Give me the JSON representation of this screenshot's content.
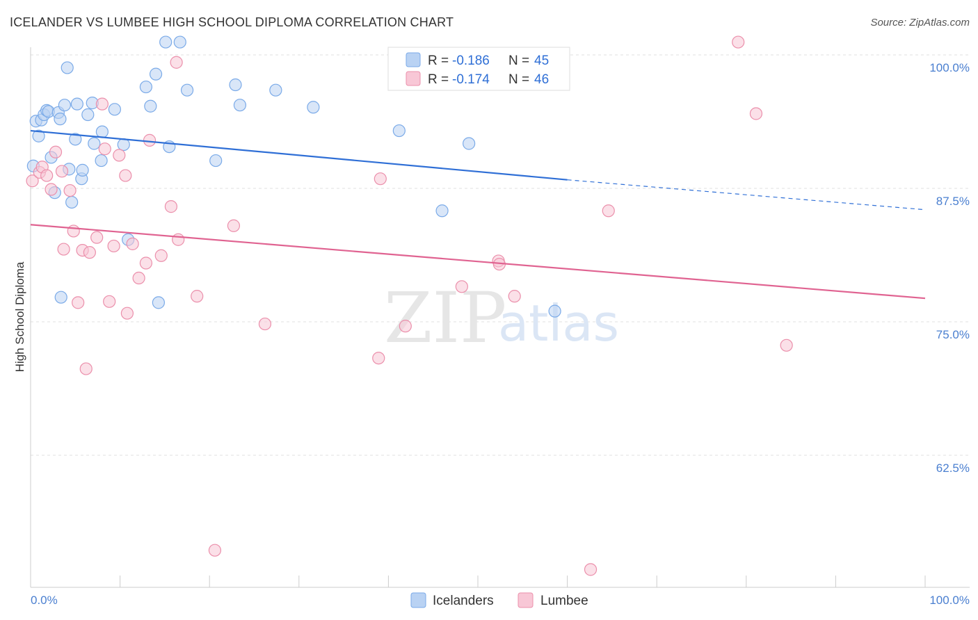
{
  "header": {
    "title": "ICELANDER VS LUMBEE HIGH SCHOOL DIPLOMA CORRELATION CHART",
    "source": "Source: ZipAtlas.com"
  },
  "watermark": {
    "zip": "ZIP",
    "atlas": "atlas"
  },
  "legend": {
    "icelanders": {
      "r_label": "R =",
      "r_value": "-0.186",
      "n_label": "N =",
      "n_value": "45"
    },
    "lumbee": {
      "r_label": "R =",
      "r_value": "-0.174",
      "n_label": "N =",
      "n_value": "46"
    }
  },
  "chart_data": {
    "type": "scatter",
    "title": "ICELANDER VS LUMBEE HIGH SCHOOL DIPLOMA CORRELATION CHART",
    "xlabel": "",
    "ylabel": "High School Diploma",
    "xlim": [
      0,
      100
    ],
    "ylim": [
      50,
      101.5
    ],
    "x_tick_labels": [
      "0.0%",
      "100.0%"
    ],
    "y_ticks": [
      {
        "value": 100,
        "label": "100.0%"
      },
      {
        "value": 87.5,
        "label": "87.5%"
      },
      {
        "value": 75,
        "label": "75.0%"
      },
      {
        "value": 62.5,
        "label": "62.5%"
      }
    ],
    "series": [
      {
        "name": "Icelanders",
        "color": "#7aaae8",
        "fill": "#b9d2f3",
        "points": [
          [
            0.3,
            89.6
          ],
          [
            0.6,
            93.8
          ],
          [
            0.9,
            92.4
          ],
          [
            1.2,
            93.9
          ],
          [
            1.5,
            94.4
          ],
          [
            1.8,
            94.8
          ],
          [
            2.0,
            94.7
          ],
          [
            2.3,
            90.4
          ],
          [
            2.7,
            87.1
          ],
          [
            3.1,
            94.6
          ],
          [
            3.3,
            94.0
          ],
          [
            3.4,
            77.3
          ],
          [
            3.8,
            95.3
          ],
          [
            4.1,
            98.8
          ],
          [
            4.3,
            89.3
          ],
          [
            4.6,
            86.2
          ],
          [
            5.0,
            92.1
          ],
          [
            5.2,
            95.4
          ],
          [
            5.7,
            88.4
          ],
          [
            5.8,
            89.2
          ],
          [
            6.4,
            94.4
          ],
          [
            6.9,
            95.5
          ],
          [
            7.1,
            91.7
          ],
          [
            7.9,
            90.1
          ],
          [
            8.0,
            92.8
          ],
          [
            9.4,
            94.9
          ],
          [
            10.4,
            91.6
          ],
          [
            10.9,
            82.7
          ],
          [
            12.9,
            97.0
          ],
          [
            13.4,
            95.2
          ],
          [
            14.0,
            98.2
          ],
          [
            14.3,
            76.8
          ],
          [
            15.1,
            101.2
          ],
          [
            15.5,
            91.4
          ],
          [
            16.7,
            101.2
          ],
          [
            17.5,
            96.7
          ],
          [
            20.7,
            90.1
          ],
          [
            22.9,
            97.2
          ],
          [
            23.4,
            95.3
          ],
          [
            27.4,
            96.7
          ],
          [
            31.6,
            95.1
          ],
          [
            41.2,
            92.9
          ],
          [
            46.0,
            85.4
          ],
          [
            49.0,
            91.7
          ],
          [
            58.6,
            76.0
          ]
        ],
        "trend": {
          "x_start": 0,
          "y_start": 92.9,
          "x_end": 60,
          "y_end": 88.3,
          "dash_to_x": 100,
          "dash_to_y": 85.5
        }
      },
      {
        "name": "Lumbee",
        "color": "#eb8fab",
        "fill": "#f8c7d6",
        "points": [
          [
            0.2,
            88.2
          ],
          [
            1.0,
            89.0
          ],
          [
            1.3,
            89.5
          ],
          [
            1.8,
            88.7
          ],
          [
            2.3,
            87.4
          ],
          [
            2.8,
            90.9
          ],
          [
            3.5,
            89.1
          ],
          [
            3.7,
            81.8
          ],
          [
            4.4,
            87.3
          ],
          [
            4.8,
            83.5
          ],
          [
            5.3,
            76.8
          ],
          [
            5.8,
            81.7
          ],
          [
            6.2,
            70.6
          ],
          [
            6.6,
            81.5
          ],
          [
            7.4,
            82.9
          ],
          [
            8.0,
            95.4
          ],
          [
            8.3,
            91.2
          ],
          [
            8.8,
            76.9
          ],
          [
            9.3,
            82.1
          ],
          [
            9.9,
            90.6
          ],
          [
            10.6,
            88.7
          ],
          [
            10.8,
            75.8
          ],
          [
            11.4,
            82.3
          ],
          [
            12.1,
            79.1
          ],
          [
            12.9,
            80.5
          ],
          [
            13.3,
            92.0
          ],
          [
            14.6,
            81.2
          ],
          [
            15.7,
            85.8
          ],
          [
            16.3,
            99.3
          ],
          [
            16.5,
            82.7
          ],
          [
            18.6,
            77.4
          ],
          [
            20.6,
            53.6
          ],
          [
            22.7,
            84.0
          ],
          [
            26.2,
            74.8
          ],
          [
            39.1,
            88.4
          ],
          [
            38.9,
            71.6
          ],
          [
            41.9,
            74.6
          ],
          [
            48.2,
            78.3
          ],
          [
            52.3,
            80.7
          ],
          [
            52.4,
            80.4
          ],
          [
            54.1,
            77.4
          ],
          [
            62.6,
            51.8
          ],
          [
            64.6,
            85.4
          ],
          [
            79.1,
            101.2
          ],
          [
            81.1,
            94.5
          ],
          [
            84.5,
            72.8
          ]
        ],
        "trend": {
          "x_start": 0,
          "y_start": 84.1,
          "x_end": 100,
          "y_end": 77.2
        }
      }
    ],
    "bottom_legend": [
      "Icelanders",
      "Lumbee"
    ]
  }
}
